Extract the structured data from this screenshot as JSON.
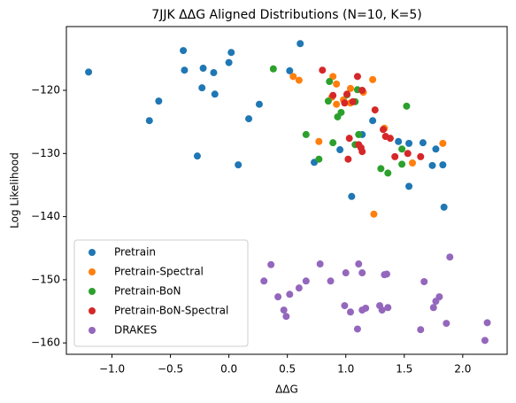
{
  "chart_data": {
    "type": "scatter",
    "title": "7JJK ΔΔG Aligned Distributions (N=10, K=5)",
    "x_label": "ΔΔG",
    "y_label": "Log Likelihood",
    "xlim": [
      -1.39,
      2.38
    ],
    "ylim": [
      -161.8,
      -109.9
    ],
    "xticks": [
      {
        "value": -1,
        "label": "−1.0"
      },
      {
        "value": -0.5,
        "label": "−0.5"
      },
      {
        "value": 0,
        "label": "0.0"
      },
      0.5,
      {
        "value": 1,
        "label": "1.0"
      },
      1.5,
      {
        "value": 2,
        "label": "2.0"
      }
    ],
    "yticks": [
      {
        "value": -120,
        "label": "−120"
      },
      {
        "value": -130,
        "label": "−130"
      },
      {
        "value": -140,
        "label": "−140"
      },
      {
        "value": -150,
        "label": "−150"
      },
      {
        "value": -160,
        "label": "−160"
      }
    ],
    "legend": "lower left",
    "series": [
      {
        "name": "Pretrain",
        "color": "#1f77b4",
        "x": [
          -1.2,
          -0.39,
          -0.38,
          -0.6,
          -0.68,
          -0.22,
          -0.13,
          -0.23,
          -0.12,
          -0.27,
          0.02,
          0.0,
          0.08,
          0.17,
          0.26,
          0.52,
          0.61,
          0.73,
          0.95,
          1.05,
          1.23,
          1.45,
          1.54,
          1.66,
          1.77,
          1.74,
          1.83,
          1.54,
          1.84,
          1.14
        ],
        "values": [
          -117.1,
          -113.7,
          -116.8,
          -121.7,
          -124.8,
          -116.5,
          -117.2,
          -119.6,
          -120.6,
          -130.4,
          -114.0,
          -115.6,
          -131.8,
          -124.5,
          -122.2,
          -116.9,
          -112.6,
          -131.4,
          -129.4,
          -136.8,
          -124.8,
          -128.1,
          -128.4,
          -128.3,
          -129.3,
          -131.9,
          -131.8,
          -135.2,
          -138.5,
          -127.0
        ]
      },
      {
        "name": "Pretrain-Spectral",
        "color": "#ff7f0e",
        "x": [
          0.55,
          0.6,
          0.77,
          0.89,
          0.92,
          0.88,
          0.92,
          0.98,
          1.04,
          1.04,
          1.23,
          1.24,
          1.33,
          1.57,
          1.83,
          1.15
        ],
        "values": [
          -117.8,
          -118.4,
          -128.1,
          -117.8,
          -119.0,
          -121.1,
          -122.2,
          -121.5,
          -122.0,
          -119.7,
          -118.3,
          -139.6,
          -126.0,
          -131.5,
          -128.4,
          -120.3
        ]
      },
      {
        "name": "Pretrain-BoN",
        "color": "#2ca02c",
        "x": [
          0.38,
          0.66,
          0.77,
          0.86,
          0.85,
          0.89,
          0.93,
          0.96,
          1.01,
          1.08,
          1.08,
          1.1,
          1.11,
          1.3,
          1.36,
          1.48,
          1.52,
          1.48
        ],
        "values": [
          -116.6,
          -127.0,
          -130.9,
          -118.6,
          -121.7,
          -128.3,
          -124.2,
          -123.5,
          -120.7,
          -121.8,
          -128.6,
          -119.9,
          -127.0,
          -132.4,
          -133.1,
          -131.7,
          -122.5,
          -129.3
        ]
      },
      {
        "name": "Pretrain-BoN-Spectral",
        "color": "#d62728",
        "x": [
          0.8,
          0.89,
          0.99,
          1.01,
          1.02,
          1.03,
          1.06,
          1.1,
          1.14,
          1.11,
          1.13,
          1.14,
          1.25,
          1.32,
          1.34,
          1.38,
          1.42,
          1.53,
          1.64
        ],
        "values": [
          -116.8,
          -120.8,
          -122.0,
          -120.6,
          -130.9,
          -127.6,
          -121.8,
          -117.8,
          -120.0,
          -128.6,
          -129.1,
          -129.7,
          -123.1,
          -126.2,
          -127.3,
          -127.6,
          -130.5,
          -130.0,
          -130.5
        ]
      },
      {
        "name": "DRAKES",
        "color": "#9467bd",
        "x": [
          0.36,
          0.3,
          0.42,
          0.47,
          0.49,
          0.52,
          0.6,
          0.66,
          0.78,
          0.87,
          1.0,
          0.99,
          1.04,
          1.11,
          1.14,
          1.14,
          1.1,
          1.17,
          1.29,
          1.31,
          1.33,
          1.35,
          1.36,
          1.64,
          1.67,
          1.75,
          1.77,
          1.8,
          1.86,
          1.89,
          2.19,
          2.21
        ],
        "values": [
          -147.6,
          -150.2,
          -152.7,
          -154.8,
          -155.8,
          -152.3,
          -151.3,
          -150.2,
          -147.5,
          -150.2,
          -148.9,
          -154.1,
          -155.1,
          -147.5,
          -148.9,
          -154.8,
          -157.8,
          -154.5,
          -154.1,
          -154.8,
          -149.2,
          -149.1,
          -154.4,
          -157.9,
          -150.3,
          -154.4,
          -153.4,
          -152.7,
          -156.9,
          -146.4,
          -159.6,
          -156.8
        ]
      }
    ]
  }
}
